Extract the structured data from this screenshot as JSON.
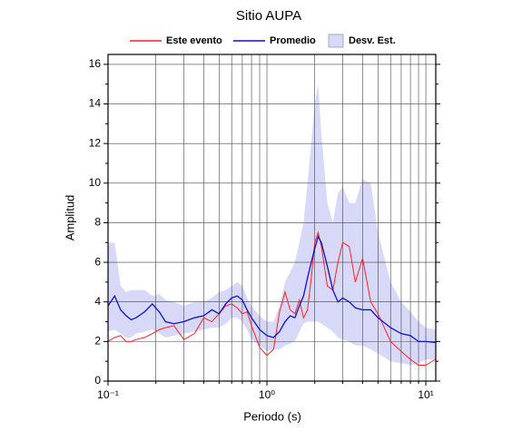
{
  "chart_data": {
    "type": "line",
    "title": "Sitio AUPA",
    "xlabel": "Periodo (s)",
    "ylabel": "Amplitud",
    "xlog": true,
    "grid": true,
    "xlim": [
      0.1,
      11.55
    ],
    "ylim": [
      0,
      16.5
    ],
    "xticks": [
      {
        "value": 0.1,
        "label": "10⁻¹"
      },
      {
        "value": 1,
        "label": "10⁰"
      },
      {
        "value": 10,
        "label": "10¹"
      }
    ],
    "xminorticks": [
      0.2,
      0.3,
      0.4,
      0.5,
      0.6,
      0.7,
      0.8,
      0.9,
      2,
      3,
      4,
      5,
      6,
      7,
      8,
      9
    ],
    "yticks": [
      0,
      2,
      4,
      6,
      8,
      10,
      12,
      14,
      16
    ],
    "yminorticks": [
      1,
      3,
      5,
      7,
      9,
      11,
      13,
      15
    ],
    "x": [
      0.1,
      0.11,
      0.12,
      0.13,
      0.14,
      0.15,
      0.17,
      0.19,
      0.21,
      0.23,
      0.26,
      0.3,
      0.35,
      0.4,
      0.45,
      0.5,
      0.55,
      0.6,
      0.65,
      0.7,
      0.75,
      0.8,
      0.9,
      1.0,
      1.1,
      1.2,
      1.3,
      1.4,
      1.5,
      1.6,
      1.7,
      1.8,
      1.9,
      2.0,
      2.1,
      2.2,
      2.4,
      2.6,
      2.8,
      3.0,
      3.3,
      3.6,
      4.0,
      4.5,
      5.0,
      6.0,
      7.0,
      8.0,
      9.0,
      10.0,
      11.5
    ],
    "series": [
      {
        "name": "Este evento",
        "color": "#ff2020",
        "values": [
          2.0,
          2.2,
          2.3,
          2.0,
          2.0,
          2.1,
          2.2,
          2.4,
          2.6,
          2.7,
          2.8,
          2.1,
          2.4,
          3.2,
          3.0,
          3.4,
          3.8,
          3.9,
          3.7,
          3.4,
          3.5,
          2.8,
          1.7,
          1.3,
          1.6,
          3.5,
          4.5,
          3.6,
          3.4,
          4.1,
          3.2,
          3.6,
          5.2,
          7.0,
          7.5,
          6.8,
          4.8,
          4.6,
          6.0,
          7.0,
          6.8,
          5.0,
          6.2,
          4.0,
          3.4,
          2.0,
          1.5,
          1.1,
          0.8,
          0.8,
          1.1
        ]
      },
      {
        "name": "Promedio",
        "color": "#1010d0",
        "values": [
          3.8,
          4.3,
          3.6,
          3.3,
          3.1,
          3.2,
          3.5,
          3.9,
          3.5,
          3.0,
          2.9,
          3.0,
          3.2,
          3.3,
          3.6,
          3.4,
          3.9,
          4.2,
          4.3,
          4.1,
          3.6,
          3.2,
          2.6,
          2.3,
          2.2,
          2.5,
          3.0,
          3.3,
          3.2,
          3.8,
          4.3,
          5.2,
          6.0,
          6.7,
          7.3,
          7.0,
          5.8,
          4.6,
          4.0,
          4.2,
          4.0,
          3.7,
          3.6,
          3.6,
          3.2,
          2.7,
          2.4,
          2.3,
          2.0,
          2.0,
          1.95
        ]
      },
      {
        "name": "Desv. Est.",
        "color": "#d8d8f8",
        "upper": [
          7.0,
          7.0,
          4.8,
          4.5,
          4.6,
          4.6,
          4.6,
          4.3,
          4.4,
          4.1,
          4.0,
          3.8,
          4.0,
          4.0,
          4.2,
          4.5,
          4.6,
          4.8,
          5.0,
          4.8,
          4.2,
          3.8,
          3.3,
          3.0,
          3.0,
          3.8,
          5.0,
          5.5,
          6.0,
          7.0,
          8.0,
          10.0,
          12.0,
          14.0,
          15.0,
          12.5,
          9.0,
          8.0,
          9.5,
          9.8,
          9.0,
          9.0,
          10.2,
          10.0,
          7.5,
          5.0,
          4.0,
          3.5,
          3.0,
          2.7,
          2.6
        ],
        "lower": [
          2.5,
          2.6,
          2.4,
          2.2,
          2.2,
          2.4,
          2.5,
          2.6,
          2.4,
          2.2,
          2.3,
          2.4,
          2.5,
          2.6,
          2.7,
          2.7,
          2.9,
          3.2,
          3.2,
          3.0,
          2.6,
          2.1,
          1.8,
          1.5,
          1.6,
          1.6,
          1.8,
          1.9,
          2.0,
          2.5,
          2.9,
          3.0,
          3.0,
          3.0,
          3.0,
          2.9,
          2.7,
          2.5,
          2.2,
          2.1,
          2.0,
          1.8,
          1.8,
          1.6,
          1.4,
          1.0,
          0.9,
          0.8,
          0.9,
          1.1,
          1.1
        ]
      }
    ]
  }
}
